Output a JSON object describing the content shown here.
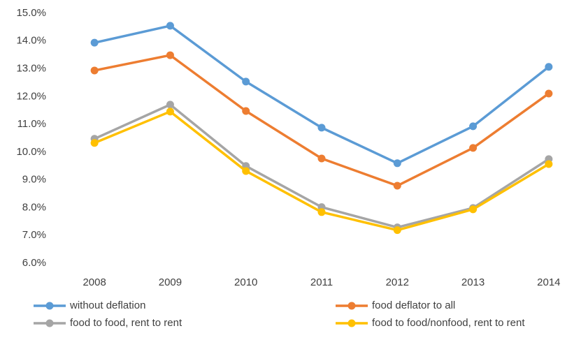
{
  "chart_data": {
    "type": "line",
    "categories": [
      "2008",
      "2009",
      "2010",
      "2011",
      "2012",
      "2013",
      "2014"
    ],
    "series": [
      {
        "name": "without deflation",
        "color": "#5b9bd5",
        "values": [
          13.94,
          14.55,
          12.54,
          10.88,
          9.6,
          10.93,
          13.07
        ]
      },
      {
        "name": "food deflator to all",
        "color": "#ed7d31",
        "values": [
          12.94,
          13.49,
          11.48,
          9.77,
          8.79,
          10.15,
          12.11
        ]
      },
      {
        "name": "food to food, rent to rent",
        "color": "#a5a5a5",
        "values": [
          10.48,
          11.71,
          9.5,
          8.02,
          7.29,
          7.99,
          9.75
        ]
      },
      {
        "name": "food to food/nonfood, rent to rent",
        "color": "#ffc000",
        "values": [
          10.33,
          11.46,
          9.32,
          7.84,
          7.19,
          7.94,
          9.57
        ]
      }
    ],
    "ylim": [
      6,
      15
    ],
    "yticks": [
      {
        "value": 6,
        "label": "6.0%"
      },
      {
        "value": 7,
        "label": "7.0%"
      },
      {
        "value": 8,
        "label": "8.0%"
      },
      {
        "value": 9,
        "label": "9.0%"
      },
      {
        "value": 10,
        "label": "10.0%"
      },
      {
        "value": 11,
        "label": "11.0%"
      },
      {
        "value": 12,
        "label": "12.0%"
      },
      {
        "value": 13,
        "label": "13.0%"
      },
      {
        "value": 14,
        "label": "14.0%"
      },
      {
        "value": 15,
        "label": "15.0%"
      }
    ],
    "grid": false,
    "legend": "bottom"
  }
}
